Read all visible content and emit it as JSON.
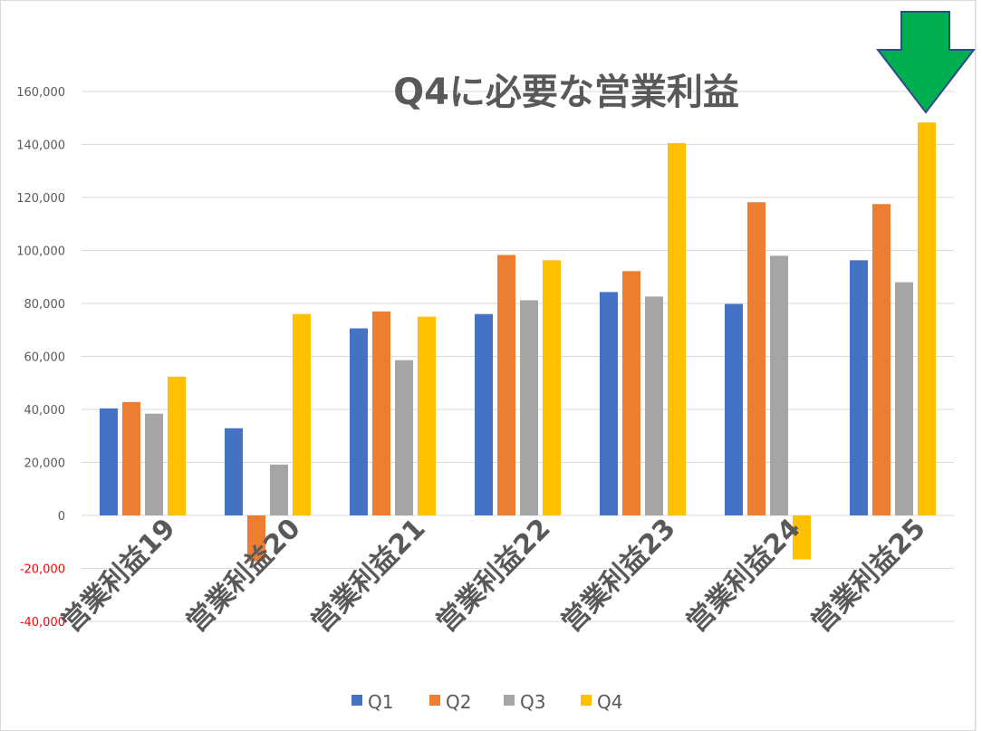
{
  "chart_data": {
    "type": "bar",
    "title": "Q4に必要な営業利益",
    "categories": [
      "営業利益19",
      "営業利益20",
      "営業利益21",
      "営業利益22",
      "営業利益23",
      "営業利益24",
      "営業利益25"
    ],
    "series": [
      {
        "name": "Q1",
        "color": "#4472C4",
        "values": [
          40400,
          32900,
          70600,
          76000,
          84300,
          79800,
          96300
        ]
      },
      {
        "name": "Q2",
        "color": "#ED7D31",
        "values": [
          42800,
          -17300,
          77000,
          98300,
          92200,
          118200,
          117500
        ]
      },
      {
        "name": "Q3",
        "color": "#A5A5A5",
        "values": [
          38400,
          19200,
          58600,
          81200,
          82600,
          98000,
          88000
        ]
      },
      {
        "name": "Q4",
        "color": "#FFC000",
        "values": [
          52400,
          76000,
          75000,
          96300,
          140500,
          -16600,
          148300
        ]
      }
    ],
    "ylim": [
      -40000,
      160000
    ],
    "yticks": [
      160000,
      140000,
      120000,
      100000,
      80000,
      60000,
      40000,
      20000,
      0,
      -20000,
      -40000
    ],
    "ytick_labels": [
      "160,000",
      "140,000",
      "120,000",
      "100,000",
      "80,000",
      "60,000",
      "40,000",
      "20,000",
      "0",
      "-20,000",
      "-40,000"
    ],
    "negative_tick_color": "#FF0000",
    "grid": true,
    "legend": "bottom",
    "annotation": {
      "type": "down-arrow",
      "color": "#00B050",
      "points_to": "営業利益25 Q4"
    }
  }
}
